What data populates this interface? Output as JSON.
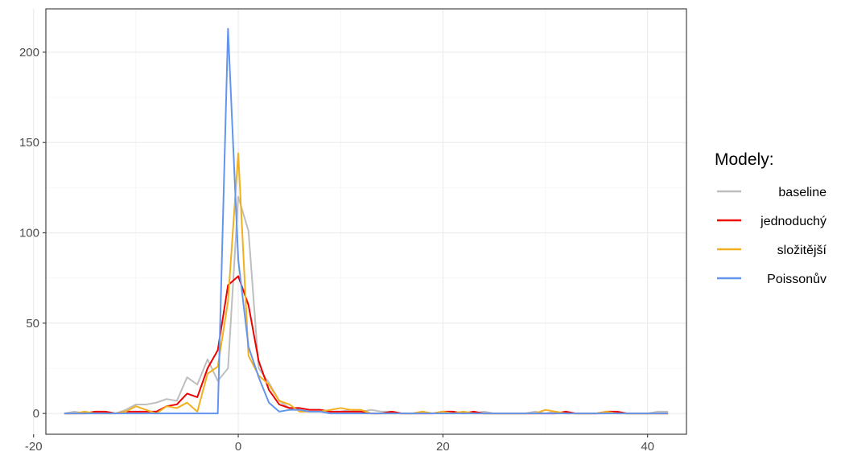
{
  "chart_data": {
    "type": "line",
    "title": "",
    "xlabel": "",
    "ylabel": "",
    "xlim": [
      -18.8,
      43.8
    ],
    "ylim": [
      -11.5,
      224
    ],
    "x_ticks": [
      -20,
      0,
      20,
      40
    ],
    "x_tick_labels": [
      "-20",
      "0",
      "20",
      "40"
    ],
    "y_ticks": [
      0,
      50,
      100,
      150,
      200
    ],
    "y_tick_labels": [
      "0",
      "50",
      "100",
      "150",
      "200"
    ],
    "grid": true,
    "legend": {
      "title": "Modely:",
      "position": "right"
    },
    "x": [
      -17,
      -16,
      -15,
      -14,
      -13,
      -12,
      -11,
      -10,
      -9,
      -8,
      -7,
      -6,
      -5,
      -4,
      -3,
      -2,
      -1,
      0,
      1,
      2,
      3,
      4,
      5,
      6,
      7,
      8,
      9,
      10,
      11,
      12,
      13,
      14,
      15,
      16,
      17,
      18,
      19,
      20,
      21,
      22,
      23,
      24,
      25,
      26,
      27,
      28,
      29,
      30,
      31,
      32,
      33,
      34,
      35,
      36,
      37,
      38,
      39,
      40,
      41,
      42
    ],
    "series": [
      {
        "name": "baseline",
        "color": "#bebebe",
        "values": [
          0,
          1,
          0,
          0,
          1,
          0,
          2,
          5,
          5,
          6,
          8,
          7,
          20,
          16,
          30,
          18,
          25,
          120,
          101,
          25,
          17,
          7,
          3,
          3,
          2,
          2,
          1,
          1,
          2,
          1,
          2,
          1,
          1,
          0,
          0,
          1,
          0,
          1,
          0,
          1,
          0,
          1,
          0,
          0,
          0,
          0,
          1,
          0,
          1,
          0,
          0,
          0,
          0,
          0,
          1,
          0,
          0,
          0,
          1,
          1
        ]
      },
      {
        "name": "jednoduchý",
        "color": "#ee0000",
        "values": [
          0,
          0,
          0,
          1,
          1,
          0,
          1,
          1,
          1,
          1,
          4,
          5,
          11,
          9,
          25,
          35,
          71,
          76,
          60,
          29,
          13,
          5,
          3,
          3,
          2,
          2,
          1,
          1,
          1,
          1,
          0,
          0,
          1,
          0,
          0,
          0,
          0,
          1,
          1,
          0,
          1,
          0,
          0,
          0,
          0,
          0,
          0,
          0,
          0,
          1,
          0,
          0,
          0,
          1,
          1,
          0,
          0,
          0,
          0,
          0
        ]
      },
      {
        "name": "složitější",
        "color": "#f2b021",
        "values": [
          0,
          0,
          1,
          0,
          0,
          0,
          1,
          4,
          2,
          0,
          4,
          3,
          6,
          1,
          22,
          26,
          62,
          144,
          32,
          21,
          16,
          7,
          5,
          1,
          1,
          1,
          2,
          3,
          2,
          2,
          0,
          0,
          0,
          0,
          0,
          1,
          0,
          1,
          0,
          1,
          0,
          0,
          0,
          0,
          0,
          0,
          0,
          2,
          1,
          0,
          0,
          0,
          0,
          1,
          0,
          0,
          0,
          0,
          0,
          0
        ]
      },
      {
        "name": "Poissonův",
        "color": "#6495ed",
        "values": [
          0,
          0,
          0,
          0,
          0,
          0,
          0,
          0,
          0,
          0,
          0,
          0,
          0,
          0,
          0,
          0,
          213,
          85,
          37,
          20,
          6,
          1,
          2,
          2,
          1,
          1,
          0,
          0,
          0,
          0,
          0,
          0,
          0,
          0,
          0,
          0,
          0,
          0,
          0,
          0,
          0,
          0,
          0,
          0,
          0,
          0,
          0,
          0,
          0,
          0,
          0,
          0,
          0,
          0,
          0,
          0,
          0,
          0,
          0,
          0
        ]
      }
    ]
  }
}
